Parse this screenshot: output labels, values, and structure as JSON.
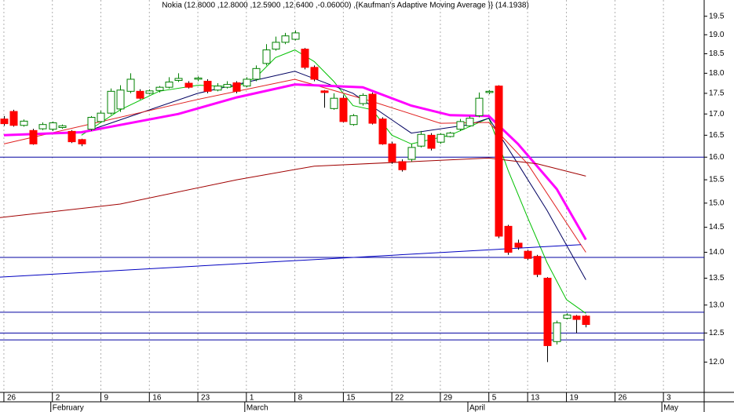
{
  "chart_data": {
    "type": "candlestick",
    "title": "Nokia (12.8000 ,12.8000 ,12.5900 ,12.6400 ,-0.06000) ,{Kaufman's Adaptive Moving Average }} (14.1938)",
    "log": true,
    "grid": true,
    "up_color": "#008000",
    "down_color": "#ff0000",
    "x": [
      0,
      1,
      2,
      3,
      4,
      5,
      6,
      7,
      8,
      9,
      10,
      11,
      12,
      13,
      14,
      15,
      16,
      17,
      18,
      19,
      20,
      21,
      22,
      23,
      24,
      25,
      26,
      27,
      28,
      29,
      30,
      31,
      32,
      33,
      34,
      35,
      36,
      37,
      38,
      39,
      40,
      41,
      42,
      43,
      44,
      45,
      46,
      47,
      48,
      49,
      50,
      51,
      52,
      53,
      54,
      55,
      56,
      57,
      58,
      59,
      60
    ],
    "open": [
      16.88,
      17.06,
      16.73,
      16.61,
      16.65,
      16.64,
      16.68,
      16.59,
      16.4,
      16.64,
      16.82,
      17.02,
      17.12,
      17.55,
      17.55,
      17.5,
      17.57,
      17.65,
      17.82,
      17.75,
      17.85,
      17.8,
      17.58,
      17.65,
      17.76,
      17.68,
      17.85,
      18.25,
      18.62,
      18.8,
      18.88,
      18.62,
      18.15,
      17.56,
      17.13,
      17.38,
      16.75,
      17.25,
      17.48,
      16.88,
      16.3,
      15.9,
      15.95,
      16.25,
      16.5,
      16.34,
      16.47,
      16.64,
      16.72,
      16.96,
      17.52,
      17.68,
      14.52,
      14.18,
      14.02,
      13.92,
      13.5,
      12.35,
      12.76,
      12.8,
      12.8
    ],
    "high": [
      16.95,
      17.1,
      16.87,
      16.65,
      16.8,
      16.82,
      16.75,
      16.62,
      16.42,
      16.95,
      17.08,
      17.62,
      17.7,
      18.0,
      17.6,
      17.6,
      17.68,
      17.9,
      18.0,
      17.8,
      17.92,
      17.85,
      17.75,
      17.8,
      17.8,
      17.9,
      18.2,
      18.75,
      18.95,
      19.05,
      19.12,
      18.65,
      18.2,
      17.58,
      17.5,
      17.45,
      17.0,
      17.5,
      17.52,
      16.92,
      16.35,
      15.95,
      16.3,
      16.6,
      16.55,
      16.55,
      16.58,
      16.88,
      16.95,
      17.52,
      17.58,
      17.7,
      14.55,
      14.25,
      14.05,
      13.95,
      13.52,
      12.72,
      12.85,
      12.82,
      12.82
    ],
    "low": [
      16.72,
      16.7,
      16.7,
      16.28,
      16.62,
      16.6,
      16.65,
      16.32,
      16.25,
      16.6,
      16.8,
      16.98,
      17.05,
      17.5,
      17.35,
      17.48,
      17.52,
      17.62,
      17.78,
      17.62,
      17.8,
      17.5,
      17.55,
      17.62,
      17.5,
      17.65,
      17.8,
      18.2,
      18.58,
      18.75,
      18.85,
      18.1,
      17.8,
      17.15,
      17.1,
      16.8,
      16.72,
      17.2,
      16.75,
      16.28,
      15.85,
      15.68,
      15.9,
      16.22,
      16.15,
      16.3,
      16.45,
      16.6,
      16.7,
      16.92,
      17.48,
      14.28,
      13.95,
      14.05,
      13.85,
      13.52,
      12.0,
      12.3,
      12.74,
      12.5,
      12.6
    ],
    "close": [
      16.77,
      16.73,
      16.83,
      16.3,
      16.75,
      16.79,
      16.72,
      16.35,
      16.3,
      16.92,
      17.02,
      17.55,
      17.58,
      17.85,
      17.38,
      17.56,
      17.65,
      17.78,
      17.87,
      17.65,
      17.88,
      17.55,
      17.68,
      17.72,
      17.55,
      17.85,
      18.12,
      18.6,
      18.8,
      18.97,
      19.05,
      18.15,
      17.85,
      17.52,
      17.38,
      16.82,
      16.96,
      17.45,
      16.78,
      16.3,
      15.9,
      15.72,
      16.22,
      16.52,
      16.2,
      16.52,
      16.55,
      16.82,
      16.9,
      17.38,
      17.55,
      14.32,
      14.0,
      14.1,
      13.88,
      13.57,
      12.28,
      12.68,
      12.82,
      12.74,
      12.65
    ],
    "lines": [
      {
        "color": "#00c000",
        "x": [
          8,
          12,
          16,
          20,
          24,
          26,
          28,
          30,
          32,
          34,
          36,
          38,
          40,
          42,
          44,
          46,
          48,
          50,
          51,
          52,
          54,
          56,
          58,
          60
        ],
        "values": [
          16.5,
          17.1,
          17.55,
          17.7,
          17.66,
          17.9,
          18.4,
          18.6,
          18.3,
          17.8,
          17.2,
          17.1,
          16.5,
          16.3,
          16.4,
          16.5,
          16.7,
          16.9,
          16.3,
          15.7,
          14.7,
          13.8,
          13.1,
          12.85
        ]
      },
      {
        "color": "#000060",
        "x": [
          8,
          20,
          30,
          36,
          42,
          48,
          50,
          53,
          56,
          60
        ],
        "values": [
          16.55,
          17.5,
          18.05,
          17.5,
          16.55,
          16.75,
          16.9,
          15.85,
          14.85,
          13.47
        ]
      },
      {
        "color": "#e02020",
        "x": [
          0,
          20,
          30,
          38,
          45,
          50,
          54,
          60
        ],
        "values": [
          16.3,
          17.35,
          17.85,
          17.3,
          16.78,
          16.8,
          15.85,
          14.0
        ]
      },
      {
        "color": "#ff00ff",
        "width": 3,
        "x": [
          0,
          8,
          18,
          24,
          30,
          37,
          42,
          46,
          50,
          53,
          57,
          60
        ],
        "values": [
          16.5,
          16.57,
          17.0,
          17.4,
          17.72,
          17.65,
          17.2,
          16.97,
          16.95,
          16.3,
          15.3,
          14.25
        ]
      },
      {
        "color": "#a00000",
        "x": [
          -0.4,
          12,
          24,
          32,
          42,
          50,
          55,
          60
        ],
        "values": [
          14.7,
          14.98,
          15.5,
          15.8,
          15.9,
          15.98,
          15.85,
          15.58
        ]
      },
      {
        "color": "#0000c0",
        "x": [
          -0.4,
          59.5
        ],
        "values": [
          13.52,
          14.15
        ]
      }
    ],
    "hlines": {
      "color": "#0000a0",
      "values": [
        16.0,
        13.9,
        12.87,
        12.5,
        12.38
      ]
    },
    "xlim": [
      -0.4,
      72.2
    ],
    "ylim": [
      11.5,
      19.95
    ],
    "xticks": [
      {
        "value": 0,
        "label": "26"
      },
      {
        "value": 5,
        "label": "2"
      },
      {
        "value": 10,
        "label": "9"
      },
      {
        "value": 15,
        "label": "16"
      },
      {
        "value": 20,
        "label": "23"
      },
      {
        "value": 25,
        "label": "1"
      },
      {
        "value": 30,
        "label": "8"
      },
      {
        "value": 35,
        "label": "15"
      },
      {
        "value": 40,
        "label": "22"
      },
      {
        "value": 45,
        "label": "29"
      },
      {
        "value": 50,
        "label": "5"
      },
      {
        "value": 54,
        "label": "13"
      },
      {
        "value": 58,
        "label": "19"
      },
      {
        "value": 63,
        "label": "26"
      },
      {
        "value": 68,
        "label": "3"
      }
    ],
    "months": [
      {
        "value": 5,
        "label": "February"
      },
      {
        "value": 25,
        "label": "March"
      },
      {
        "value": 48,
        "label": "April"
      },
      {
        "value": 68,
        "label": "May"
      }
    ],
    "yticks": [
      {
        "value": 12,
        "label": "12.0"
      },
      {
        "value": 12.5,
        "label": "12.5"
      },
      {
        "value": 13,
        "label": "13.0"
      },
      {
        "value": 13.5,
        "label": "13.5"
      },
      {
        "value": 14,
        "label": "14.0"
      },
      {
        "value": 14.5,
        "label": "14.5"
      },
      {
        "value": 15,
        "label": "15.0"
      },
      {
        "value": 15.5,
        "label": "15.5"
      },
      {
        "value": 16,
        "label": "16.0"
      },
      {
        "value": 16.5,
        "label": "16.5"
      },
      {
        "value": 17,
        "label": "17.0"
      },
      {
        "value": 17.5,
        "label": "17.5"
      },
      {
        "value": 18,
        "label": "18.0"
      },
      {
        "value": 18.5,
        "label": "18.5"
      },
      {
        "value": 19,
        "label": "19.0"
      },
      {
        "value": 19.5,
        "label": "19.5"
      }
    ]
  }
}
